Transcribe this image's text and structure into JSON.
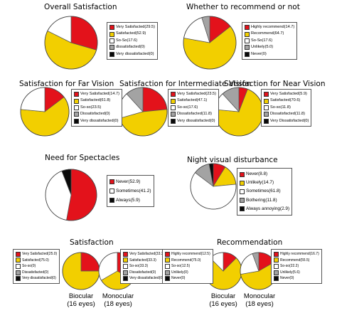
{
  "colors": {
    "red": "#e3121b",
    "yellow": "#f2cf00",
    "white": "#ffffff",
    "grey": "#a3a3a3",
    "black": "#0a0a0a"
  },
  "chart_data": [
    {
      "id": "overall",
      "type": "pie",
      "title": "Overall Satisfaction",
      "slices": [
        {
          "label": "Very Satisfacted(29.5)",
          "value": 29.5,
          "color": "red"
        },
        {
          "label": "Satisfacted(52.9)",
          "value": 52.9,
          "color": "yellow"
        },
        {
          "label": "So-So(17.6)",
          "value": 17.6,
          "color": "white"
        },
        {
          "label": "dissatisfacted(0)",
          "value": 0,
          "color": "grey"
        },
        {
          "label": "Very dissatisfacted(0)",
          "value": 0,
          "color": "black"
        }
      ]
    },
    {
      "id": "recommend",
      "type": "pie",
      "title": "Whether to recommend or not",
      "slices": [
        {
          "label": "Highly recommend(14.7)",
          "value": 14.7,
          "color": "red"
        },
        {
          "label": "Recommend(64.7)",
          "value": 64.7,
          "color": "yellow"
        },
        {
          "label": "So-So(17.6)",
          "value": 17.6,
          "color": "white"
        },
        {
          "label": "Unlikely(5.0)",
          "value": 5.0,
          "color": "grey"
        },
        {
          "label": "Never(0)",
          "value": 0,
          "color": "black"
        }
      ]
    },
    {
      "id": "far",
      "type": "pie",
      "title": "Satisfaction for Far Vision",
      "slices": [
        {
          "label": "Very Satisfacted(14.7)",
          "value": 14.7,
          "color": "red"
        },
        {
          "label": "Satisfacted(61.8)",
          "value": 61.8,
          "color": "yellow"
        },
        {
          "label": "So-so(23.5)",
          "value": 23.5,
          "color": "white"
        },
        {
          "label": "Dissatisfacted(0)",
          "value": 0,
          "color": "grey"
        },
        {
          "label": "Very dissatisfacted(0)",
          "value": 0,
          "color": "black"
        }
      ]
    },
    {
      "id": "intermediate",
      "type": "pie",
      "title": "Satisfaction for Intermediate Vision",
      "slices": [
        {
          "label": "Very Satisfacted(23.5)",
          "value": 23.5,
          "color": "red"
        },
        {
          "label": "Satisfacted(47.1)",
          "value": 47.1,
          "color": "yellow"
        },
        {
          "label": "So-so(17.6)",
          "value": 17.6,
          "color": "white"
        },
        {
          "label": "Dissatisfacted(11.8)",
          "value": 11.8,
          "color": "grey"
        },
        {
          "label": "Very dissatisfacted(0)",
          "value": 0,
          "color": "black"
        }
      ]
    },
    {
      "id": "near",
      "type": "pie",
      "title": "Satisfaction for Near Vision",
      "slices": [
        {
          "label": "Very Satisfacted(5.9)",
          "value": 5.9,
          "color": "red"
        },
        {
          "label": "Satisfacted(70.6)",
          "value": 70.6,
          "color": "yellow"
        },
        {
          "label": "So-so(11.8)",
          "value": 11.8,
          "color": "white"
        },
        {
          "label": "Dissatisfacted(11.8)",
          "value": 11.8,
          "color": "grey"
        },
        {
          "label": "Very Dissatisfacted(0)",
          "value": 0,
          "color": "black"
        }
      ]
    },
    {
      "id": "spectacles",
      "type": "pie",
      "title": "Need for Spectacles",
      "slices": [
        {
          "label": "Never(52.9)",
          "value": 52.9,
          "color": "red"
        },
        {
          "label": "Sometimes(41.2)",
          "value": 41.2,
          "color": "white"
        },
        {
          "label": "Always(5.9)",
          "value": 5.9,
          "color": "black"
        }
      ]
    },
    {
      "id": "night",
      "type": "pie",
      "title": "Night visual disturbance",
      "slices": [
        {
          "label": "Never(8.8)",
          "value": 8.8,
          "color": "red"
        },
        {
          "label": "Unlikely(14.7)",
          "value": 14.7,
          "color": "yellow"
        },
        {
          "label": "Sometimes(61.8)",
          "value": 61.8,
          "color": "white"
        },
        {
          "label": "Bothering(11.8)",
          "value": 11.8,
          "color": "grey"
        },
        {
          "label": "Always annoying(2.9)",
          "value": 2.9,
          "color": "black"
        }
      ]
    },
    {
      "id": "sat_bi",
      "type": "pie",
      "caption": "Biocular\n(16 eyes)",
      "slices": [
        {
          "label": "Very Satisfacted(25.0)",
          "value": 25.0,
          "color": "red"
        },
        {
          "label": "Satisfacted(75.0)",
          "value": 75.0,
          "color": "yellow"
        },
        {
          "label": "So-so(0)",
          "value": 0,
          "color": "white"
        },
        {
          "label": "Dissatisfacted(0)",
          "value": 0,
          "color": "grey"
        },
        {
          "label": "Very dissatisfacted(0)",
          "value": 0,
          "color": "black"
        }
      ]
    },
    {
      "id": "sat_mono",
      "type": "pie",
      "caption": "Monocular\n(18 eyes)",
      "slices": [
        {
          "label": "Very Satisfacted(33.3)",
          "value": 33.3,
          "color": "red"
        },
        {
          "label": "Satisfacted(33.3)",
          "value": 33.3,
          "color": "yellow"
        },
        {
          "label": "So-so(33.3)",
          "value": 33.3,
          "color": "white"
        },
        {
          "label": "Dissatisfacted(0)",
          "value": 0,
          "color": "grey"
        },
        {
          "label": "Very dissatisfacted(0)",
          "value": 0,
          "color": "black"
        }
      ]
    },
    {
      "id": "rec_bi",
      "type": "pie",
      "caption": "Biocular\n(16 eyes)",
      "slices": [
        {
          "label": "Highly recommend(12.5)",
          "value": 12.5,
          "color": "red"
        },
        {
          "label": "Recommend(75.0)",
          "value": 75.0,
          "color": "yellow"
        },
        {
          "label": "So-so(12.5)",
          "value": 12.5,
          "color": "white"
        },
        {
          "label": "Unlikely(0)",
          "value": 0,
          "color": "grey"
        },
        {
          "label": "Never(0)",
          "value": 0,
          "color": "black"
        }
      ]
    },
    {
      "id": "rec_mono",
      "type": "pie",
      "caption": "Monocular\n(18 eyes)",
      "slices": [
        {
          "label": "Highly recommend(16.7)",
          "value": 16.7,
          "color": "red"
        },
        {
          "label": "Recommend(55.5)",
          "value": 55.5,
          "color": "yellow"
        },
        {
          "label": "So-so(22.2)",
          "value": 22.2,
          "color": "white"
        },
        {
          "label": "Unlikely(5.6)",
          "value": 5.6,
          "color": "grey"
        },
        {
          "label": "Never(0)",
          "value": 0,
          "color": "black"
        }
      ]
    }
  ],
  "section_titles": {
    "satisfaction": "Satisfaction",
    "recommendation": "Recommendation"
  }
}
